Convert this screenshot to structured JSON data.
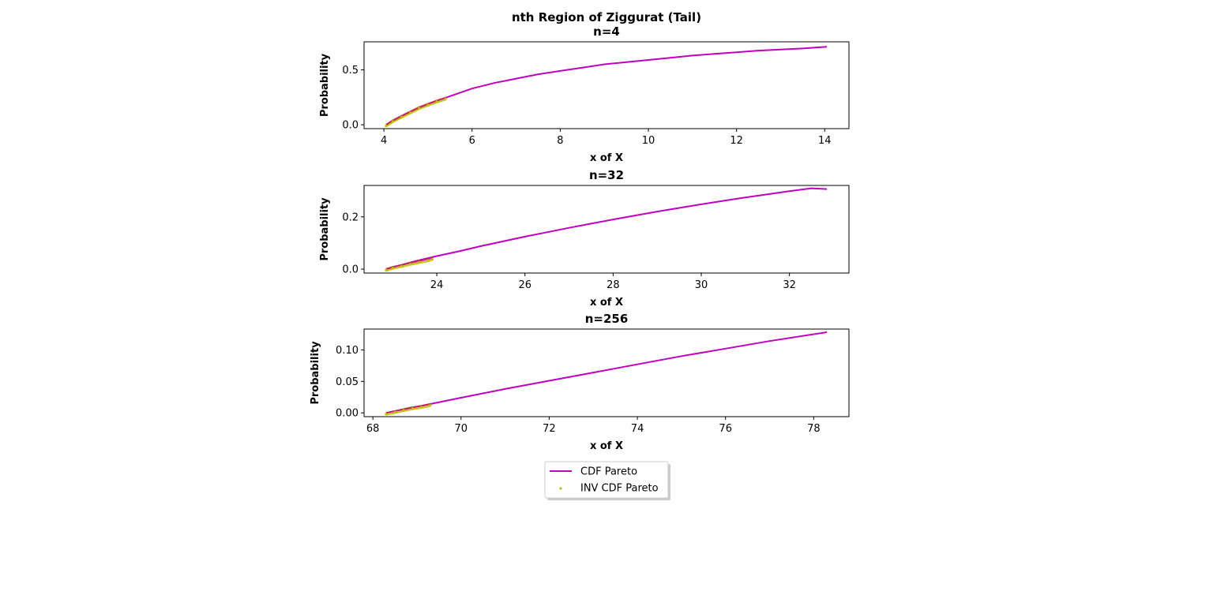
{
  "figure": {
    "title": "nth Region of Ziggurat (Tail)"
  },
  "colors": {
    "cdf": "#bf00bf",
    "inv": "#bfbf00",
    "overlap": "#c03040"
  },
  "legend": {
    "cdf_label": "CDF Pareto",
    "inv_label": "INV CDF Pareto",
    "placement": "lower-center"
  },
  "chart_data": [
    {
      "type": "line",
      "title": "n=4",
      "xlabel": "x of X",
      "ylabel": "Probability",
      "xlim": [
        3.55,
        14.55
      ],
      "ylim": [
        -0.035,
        0.755
      ],
      "xticks": [
        "4",
        "6",
        "8",
        "10",
        "12",
        "14"
      ],
      "xtick_values": [
        4,
        6,
        8,
        10,
        12,
        14
      ],
      "yticks": [
        "0.0",
        "0.5"
      ],
      "ytick_values": [
        0.0,
        0.5
      ],
      "series": [
        {
          "name": "CDF Pareto",
          "kind": "line",
          "x": [
            4.05,
            4.5,
            5.0,
            5.5,
            6.0,
            6.5,
            7.0,
            7.5,
            8.0,
            8.5,
            9.0,
            9.5,
            10.0,
            10.5,
            11.0,
            11.5,
            12.0,
            12.5,
            13.0,
            13.5,
            14.05
          ],
          "y": [
            0.0,
            0.1,
            0.19,
            0.26,
            0.33,
            0.38,
            0.42,
            0.46,
            0.49,
            0.52,
            0.55,
            0.57,
            0.59,
            0.61,
            0.63,
            0.645,
            0.66,
            0.675,
            0.685,
            0.695,
            0.71
          ]
        },
        {
          "name": "INV CDF Pareto",
          "kind": "scatter",
          "x": [
            4.05,
            4.2,
            4.4,
            4.6,
            4.8,
            5.0,
            5.2,
            5.4
          ],
          "y": [
            -0.01,
            0.03,
            0.07,
            0.11,
            0.15,
            0.18,
            0.21,
            0.235
          ]
        }
      ]
    },
    {
      "type": "line",
      "title": "n=32",
      "xlabel": "x of X",
      "ylabel": "Probability",
      "xlim": [
        22.35,
        33.35
      ],
      "ylim": [
        -0.015,
        0.32
      ],
      "xticks": [
        "24",
        "26",
        "28",
        "30",
        "32"
      ],
      "xtick_values": [
        24,
        26,
        28,
        30,
        32
      ],
      "yticks": [
        "0.0",
        "0.2"
      ],
      "ytick_values": [
        0.0,
        0.2
      ],
      "series": [
        {
          "name": "CDF Pareto",
          "kind": "line",
          "x": [
            22.85,
            23.5,
            24.0,
            24.5,
            25.0,
            25.5,
            26.0,
            26.5,
            27.0,
            27.5,
            28.0,
            28.5,
            29.0,
            29.5,
            30.0,
            30.5,
            31.0,
            31.5,
            32.0,
            32.5,
            32.85
          ],
          "y": [
            0.0,
            0.03,
            0.05,
            0.068,
            0.088,
            0.106,
            0.124,
            0.141,
            0.158,
            0.174,
            0.19,
            0.205,
            0.22,
            0.234,
            0.248,
            0.261,
            0.274,
            0.286,
            0.298,
            0.309,
            0.306
          ]
        },
        {
          "name": "INV CDF Pareto",
          "kind": "scatter",
          "x": [
            22.85,
            23.0,
            23.2,
            23.4,
            23.6,
            23.8,
            23.9
          ],
          "y": [
            -0.004,
            0.004,
            0.011,
            0.019,
            0.026,
            0.033,
            0.038
          ]
        }
      ]
    },
    {
      "type": "line",
      "title": "n=256",
      "xlabel": "x of X",
      "ylabel": "Probability",
      "xlim": [
        67.8,
        78.8
      ],
      "ylim": [
        -0.006,
        0.133
      ],
      "xticks": [
        "68",
        "70",
        "72",
        "74",
        "76",
        "78"
      ],
      "xtick_values": [
        68,
        70,
        72,
        74,
        76,
        78
      ],
      "yticks": [
        "0.00",
        "0.05",
        "0.10"
      ],
      "ytick_values": [
        0.0,
        0.05,
        0.1
      ],
      "series": [
        {
          "name": "CDF Pareto",
          "kind": "line",
          "x": [
            68.3,
            69.3,
            70.0,
            71.0,
            72.0,
            73.0,
            74.0,
            75.0,
            76.0,
            77.0,
            78.3
          ],
          "y": [
            0.0,
            0.014,
            0.024,
            0.038,
            0.051,
            0.064,
            0.077,
            0.09,
            0.102,
            0.114,
            0.128
          ]
        },
        {
          "name": "INV CDF Pareto",
          "kind": "scatter",
          "x": [
            68.3,
            68.5,
            68.7,
            68.9,
            69.1,
            69.3
          ],
          "y": [
            -0.002,
            0.001,
            0.004,
            0.007,
            0.009,
            0.012
          ]
        }
      ]
    }
  ]
}
